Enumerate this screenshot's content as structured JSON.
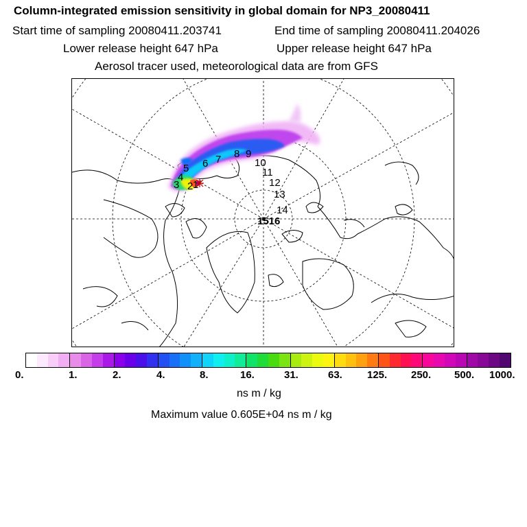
{
  "header": {
    "title": "Column-integrated emission sensitivity in global domain for NP3_20080411",
    "start_time": "Start time of sampling 20080411.203741",
    "end_time": "End time of sampling 20080411.204026",
    "lower_height": "Lower release height  647 hPa",
    "upper_height": "Upper release height  647 hPa",
    "tracer_note": "Aerosol tracer used, meteorological data are from GFS"
  },
  "map": {
    "trajectory_labels": [
      "1",
      "2",
      "3",
      "4",
      "5",
      "6",
      "7",
      "8",
      "9",
      "10",
      "11",
      "12",
      "13",
      "14",
      "15",
      "16"
    ],
    "overlap_label": "1516"
  },
  "colorbar": {
    "tick_labels": [
      "0.",
      "1.",
      "2.",
      "4.",
      "8.",
      "16.",
      "31.",
      "63.",
      "125.",
      "250.",
      "500.",
      "1000."
    ],
    "colors": [
      "#ffffff",
      "#fde9fd",
      "#f8cdf8",
      "#f2aef2",
      "#e98be9",
      "#d964e6",
      "#c43ee9",
      "#a91ae9",
      "#8a00ea",
      "#6a00ea",
      "#4a10ea",
      "#3030ee",
      "#2250f3",
      "#1870f6",
      "#1090f8",
      "#10b0fa",
      "#10d4fa",
      "#10eef0",
      "#10f0c8",
      "#10ec98",
      "#10e468",
      "#20dc38",
      "#48dc10",
      "#7ce410",
      "#a8ec10",
      "#ccf410",
      "#ecfa10",
      "#fff410",
      "#ffdc10",
      "#ffc010",
      "#ffa010",
      "#ff7a10",
      "#ff5418",
      "#ff2a30",
      "#ff1050",
      "#ff0878",
      "#f8089a",
      "#e808b0",
      "#d008b8",
      "#b808b4",
      "#a008a8",
      "#880898",
      "#6c0884",
      "#500870"
    ],
    "units": "ns m / kg",
    "max_value": "Maximum value  0.605E+04 ns m / kg"
  }
}
